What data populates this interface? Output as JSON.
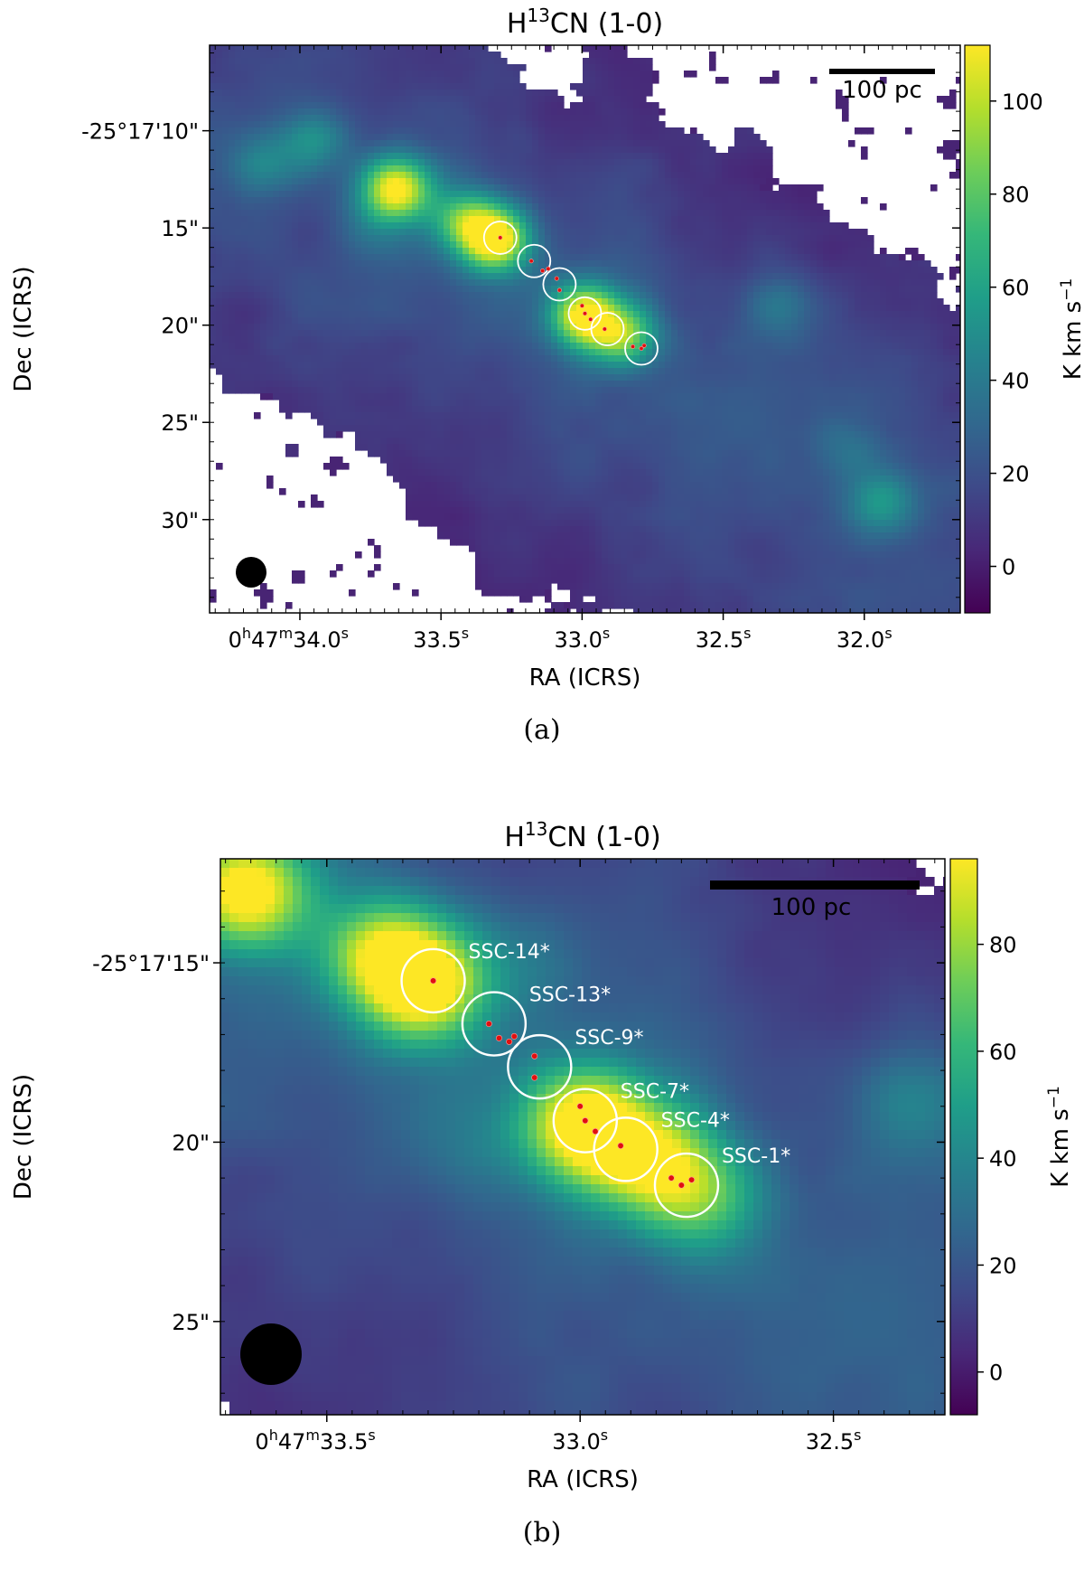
{
  "chart_data": [
    {
      "type": "heatmap",
      "panel_label": "(a)",
      "title": {
        "pre": "H",
        "sup": "13",
        "post": "CN (1-0)"
      },
      "xlabel": "RA (ICRS)",
      "ylabel": "Dec (ICRS)",
      "xlim_ra_s": [
        34.32,
        31.66
      ],
      "ylim_dec_arcsec": [
        5.6,
        34.8
      ],
      "x_ticks": [
        {
          "value": 34.0,
          "prefix": "0",
          "h": "h",
          "mid": "47",
          "m": "m",
          "main": "34.0",
          "s": "s"
        },
        {
          "value": 33.5,
          "main": "33.5",
          "s": "s"
        },
        {
          "value": 33.0,
          "main": "33.0",
          "s": "s"
        },
        {
          "value": 32.5,
          "main": "32.5",
          "s": "s"
        },
        {
          "value": 32.0,
          "main": "32.0",
          "s": "s"
        }
      ],
      "y_ticks": [
        {
          "value": 10,
          "label": "-25°17'10\""
        },
        {
          "value": 15,
          "label": "15\""
        },
        {
          "value": 20,
          "label": "20\""
        },
        {
          "value": 25,
          "label": "25\""
        },
        {
          "value": 30,
          "label": "30\""
        }
      ],
      "colorbar": {
        "label": "K km s",
        "label_sup": "−1",
        "range": [
          -10,
          112
        ],
        "ticks": [
          0,
          20,
          40,
          60,
          80,
          100
        ],
        "colormap": "viridis"
      },
      "scale_bar": {
        "label": "100 pc"
      },
      "beam": "filled black circle, bottom-left",
      "sources": [
        {
          "ra": 33.29,
          "dec": 15.5,
          "label": ""
        },
        {
          "ra": 33.17,
          "dec": 16.7,
          "label": ""
        },
        {
          "ra": 33.08,
          "dec": 17.9,
          "label": ""
        },
        {
          "ra": 32.99,
          "dec": 19.4,
          "label": ""
        },
        {
          "ra": 32.91,
          "dec": 20.2,
          "label": ""
        },
        {
          "ra": 32.79,
          "dec": 21.2,
          "label": ""
        }
      ],
      "stars": [
        {
          "ra": 33.29,
          "dec": 15.5
        },
        {
          "ra": 33.18,
          "dec": 16.7
        },
        {
          "ra": 33.14,
          "dec": 17.2
        },
        {
          "ra": 33.12,
          "dec": 17.1
        },
        {
          "ra": 33.09,
          "dec": 17.6
        },
        {
          "ra": 33.08,
          "dec": 18.2
        },
        {
          "ra": 33.0,
          "dec": 19.0
        },
        {
          "ra": 32.99,
          "dec": 19.4
        },
        {
          "ra": 32.97,
          "dec": 19.7
        },
        {
          "ra": 32.92,
          "dec": 20.2
        },
        {
          "ra": 32.82,
          "dec": 21.1
        },
        {
          "ra": 32.79,
          "dec": 21.2
        },
        {
          "ra": 32.78,
          "dec": 21.05
        }
      ],
      "emission_peaks": [
        {
          "ra": 33.66,
          "dec": 13.0,
          "value": 105
        },
        {
          "ra": 33.31,
          "dec": 15.6,
          "value": 112
        },
        {
          "ra": 32.99,
          "dec": 19.5,
          "value": 105
        },
        {
          "ra": 32.85,
          "dec": 20.6,
          "value": 75
        },
        {
          "ra": 33.42,
          "dec": 14.5,
          "value": 60
        },
        {
          "ra": 33.95,
          "dec": 10.5,
          "value": 40
        },
        {
          "ra": 34.13,
          "dec": 11.8,
          "value": 35
        },
        {
          "ra": 33.75,
          "dec": 15.0,
          "value": 25
        },
        {
          "ra": 32.31,
          "dec": 19.0,
          "value": 38
        },
        {
          "ra": 31.94,
          "dec": 29.2,
          "value": 45
        },
        {
          "ra": 32.05,
          "dec": 26.5,
          "value": 25
        }
      ]
    },
    {
      "type": "heatmap",
      "panel_label": "(b)",
      "title": {
        "pre": "H",
        "sup": "13",
        "post": "CN (1-0)"
      },
      "xlabel": "RA (ICRS)",
      "ylabel": "Dec (ICRS)",
      "xlim_ra_s": [
        33.71,
        32.28
      ],
      "ylim_dec_arcsec": [
        12.1,
        27.6
      ],
      "x_ticks": [
        {
          "value": 33.5,
          "prefix": "0",
          "h": "h",
          "mid": "47",
          "m": "m",
          "main": "33.5",
          "s": "s"
        },
        {
          "value": 33.0,
          "main": "33.0",
          "s": "s"
        },
        {
          "value": 32.5,
          "main": "32.5",
          "s": "s"
        }
      ],
      "y_ticks": [
        {
          "value": 15,
          "label": "-25°17'15\""
        },
        {
          "value": 20,
          "label": "20\""
        },
        {
          "value": 25,
          "label": "25\""
        }
      ],
      "colorbar": {
        "label": "K km s",
        "label_sup": "−1",
        "range": [
          -8,
          96
        ],
        "ticks": [
          0,
          20,
          40,
          60,
          80
        ],
        "colormap": "viridis"
      },
      "scale_bar": {
        "label": "100 pc"
      },
      "beam": "filled black circle, bottom-left",
      "sources": [
        {
          "ra": 33.29,
          "dec": 15.5,
          "label": "SSC-14*"
        },
        {
          "ra": 33.17,
          "dec": 16.7,
          "label": "SSC-13*"
        },
        {
          "ra": 33.08,
          "dec": 17.9,
          "label": "SSC-9*"
        },
        {
          "ra": 32.99,
          "dec": 19.4,
          "label": "SSC-7*"
        },
        {
          "ra": 32.91,
          "dec": 20.2,
          "label": "SSC-4*"
        },
        {
          "ra": 32.79,
          "dec": 21.2,
          "label": "SSC-1*"
        }
      ],
      "stars": [
        {
          "ra": 33.29,
          "dec": 15.5
        },
        {
          "ra": 33.18,
          "dec": 16.7
        },
        {
          "ra": 33.16,
          "dec": 17.1
        },
        {
          "ra": 33.14,
          "dec": 17.2
        },
        {
          "ra": 33.13,
          "dec": 17.05
        },
        {
          "ra": 33.09,
          "dec": 17.6
        },
        {
          "ra": 33.09,
          "dec": 18.2
        },
        {
          "ra": 33.0,
          "dec": 19.0
        },
        {
          "ra": 32.99,
          "dec": 19.4
        },
        {
          "ra": 32.97,
          "dec": 19.7
        },
        {
          "ra": 32.92,
          "dec": 20.1
        },
        {
          "ra": 32.82,
          "dec": 21.0
        },
        {
          "ra": 32.8,
          "dec": 21.2
        },
        {
          "ra": 32.78,
          "dec": 21.05
        }
      ],
      "emission_peaks": [
        {
          "ra": 33.66,
          "dec": 13.0,
          "value": 96
        },
        {
          "ra": 33.31,
          "dec": 15.6,
          "value": 96
        },
        {
          "ra": 32.99,
          "dec": 19.5,
          "value": 96
        },
        {
          "ra": 32.86,
          "dec": 20.5,
          "value": 70
        },
        {
          "ra": 32.76,
          "dec": 21.6,
          "value": 55
        },
        {
          "ra": 33.4,
          "dec": 14.6,
          "value": 60
        },
        {
          "ra": 32.34,
          "dec": 18.9,
          "value": 38
        },
        {
          "ra": 33.1,
          "dec": 15.0,
          "value": 25
        },
        {
          "ra": 33.2,
          "dec": 20.0,
          "value": 20
        }
      ]
    }
  ]
}
